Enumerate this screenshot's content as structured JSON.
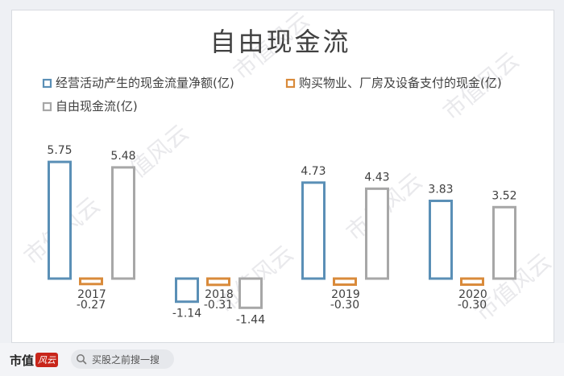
{
  "chart_data": {
    "type": "bar",
    "title": "自由现金流",
    "categories": [
      "2017",
      "2018",
      "2019",
      "2020"
    ],
    "series": [
      {
        "name": "经营活动产生的现金流量净额(亿)",
        "values": [
          5.75,
          -1.14,
          4.73,
          3.83
        ],
        "color": "#5a8fb6"
      },
      {
        "name": "购买物业、厂房及设备支付的现金(亿)",
        "values": [
          -0.27,
          -0.31,
          -0.3,
          -0.3
        ],
        "color": "#d98a3a"
      },
      {
        "name": "自由现金流(亿)",
        "values": [
          5.48,
          -1.44,
          4.43,
          3.52
        ],
        "color": "#a7a7a7"
      }
    ],
    "data_labels": [
      [
        "5.75",
        "-1.14",
        "4.73",
        "3.83"
      ],
      [
        "-0.27",
        "-0.31",
        "-0.30",
        "-0.30"
      ],
      [
        "5.48",
        "-1.44",
        "4.43",
        "3.52"
      ]
    ],
    "legend_position": "top-left",
    "grid": false
  },
  "watermark": "市值风云",
  "footer": {
    "brand": "市值",
    "brand_mark": "风云",
    "search_icon": "search-icon",
    "search_text": "买股之前搜一搜"
  }
}
